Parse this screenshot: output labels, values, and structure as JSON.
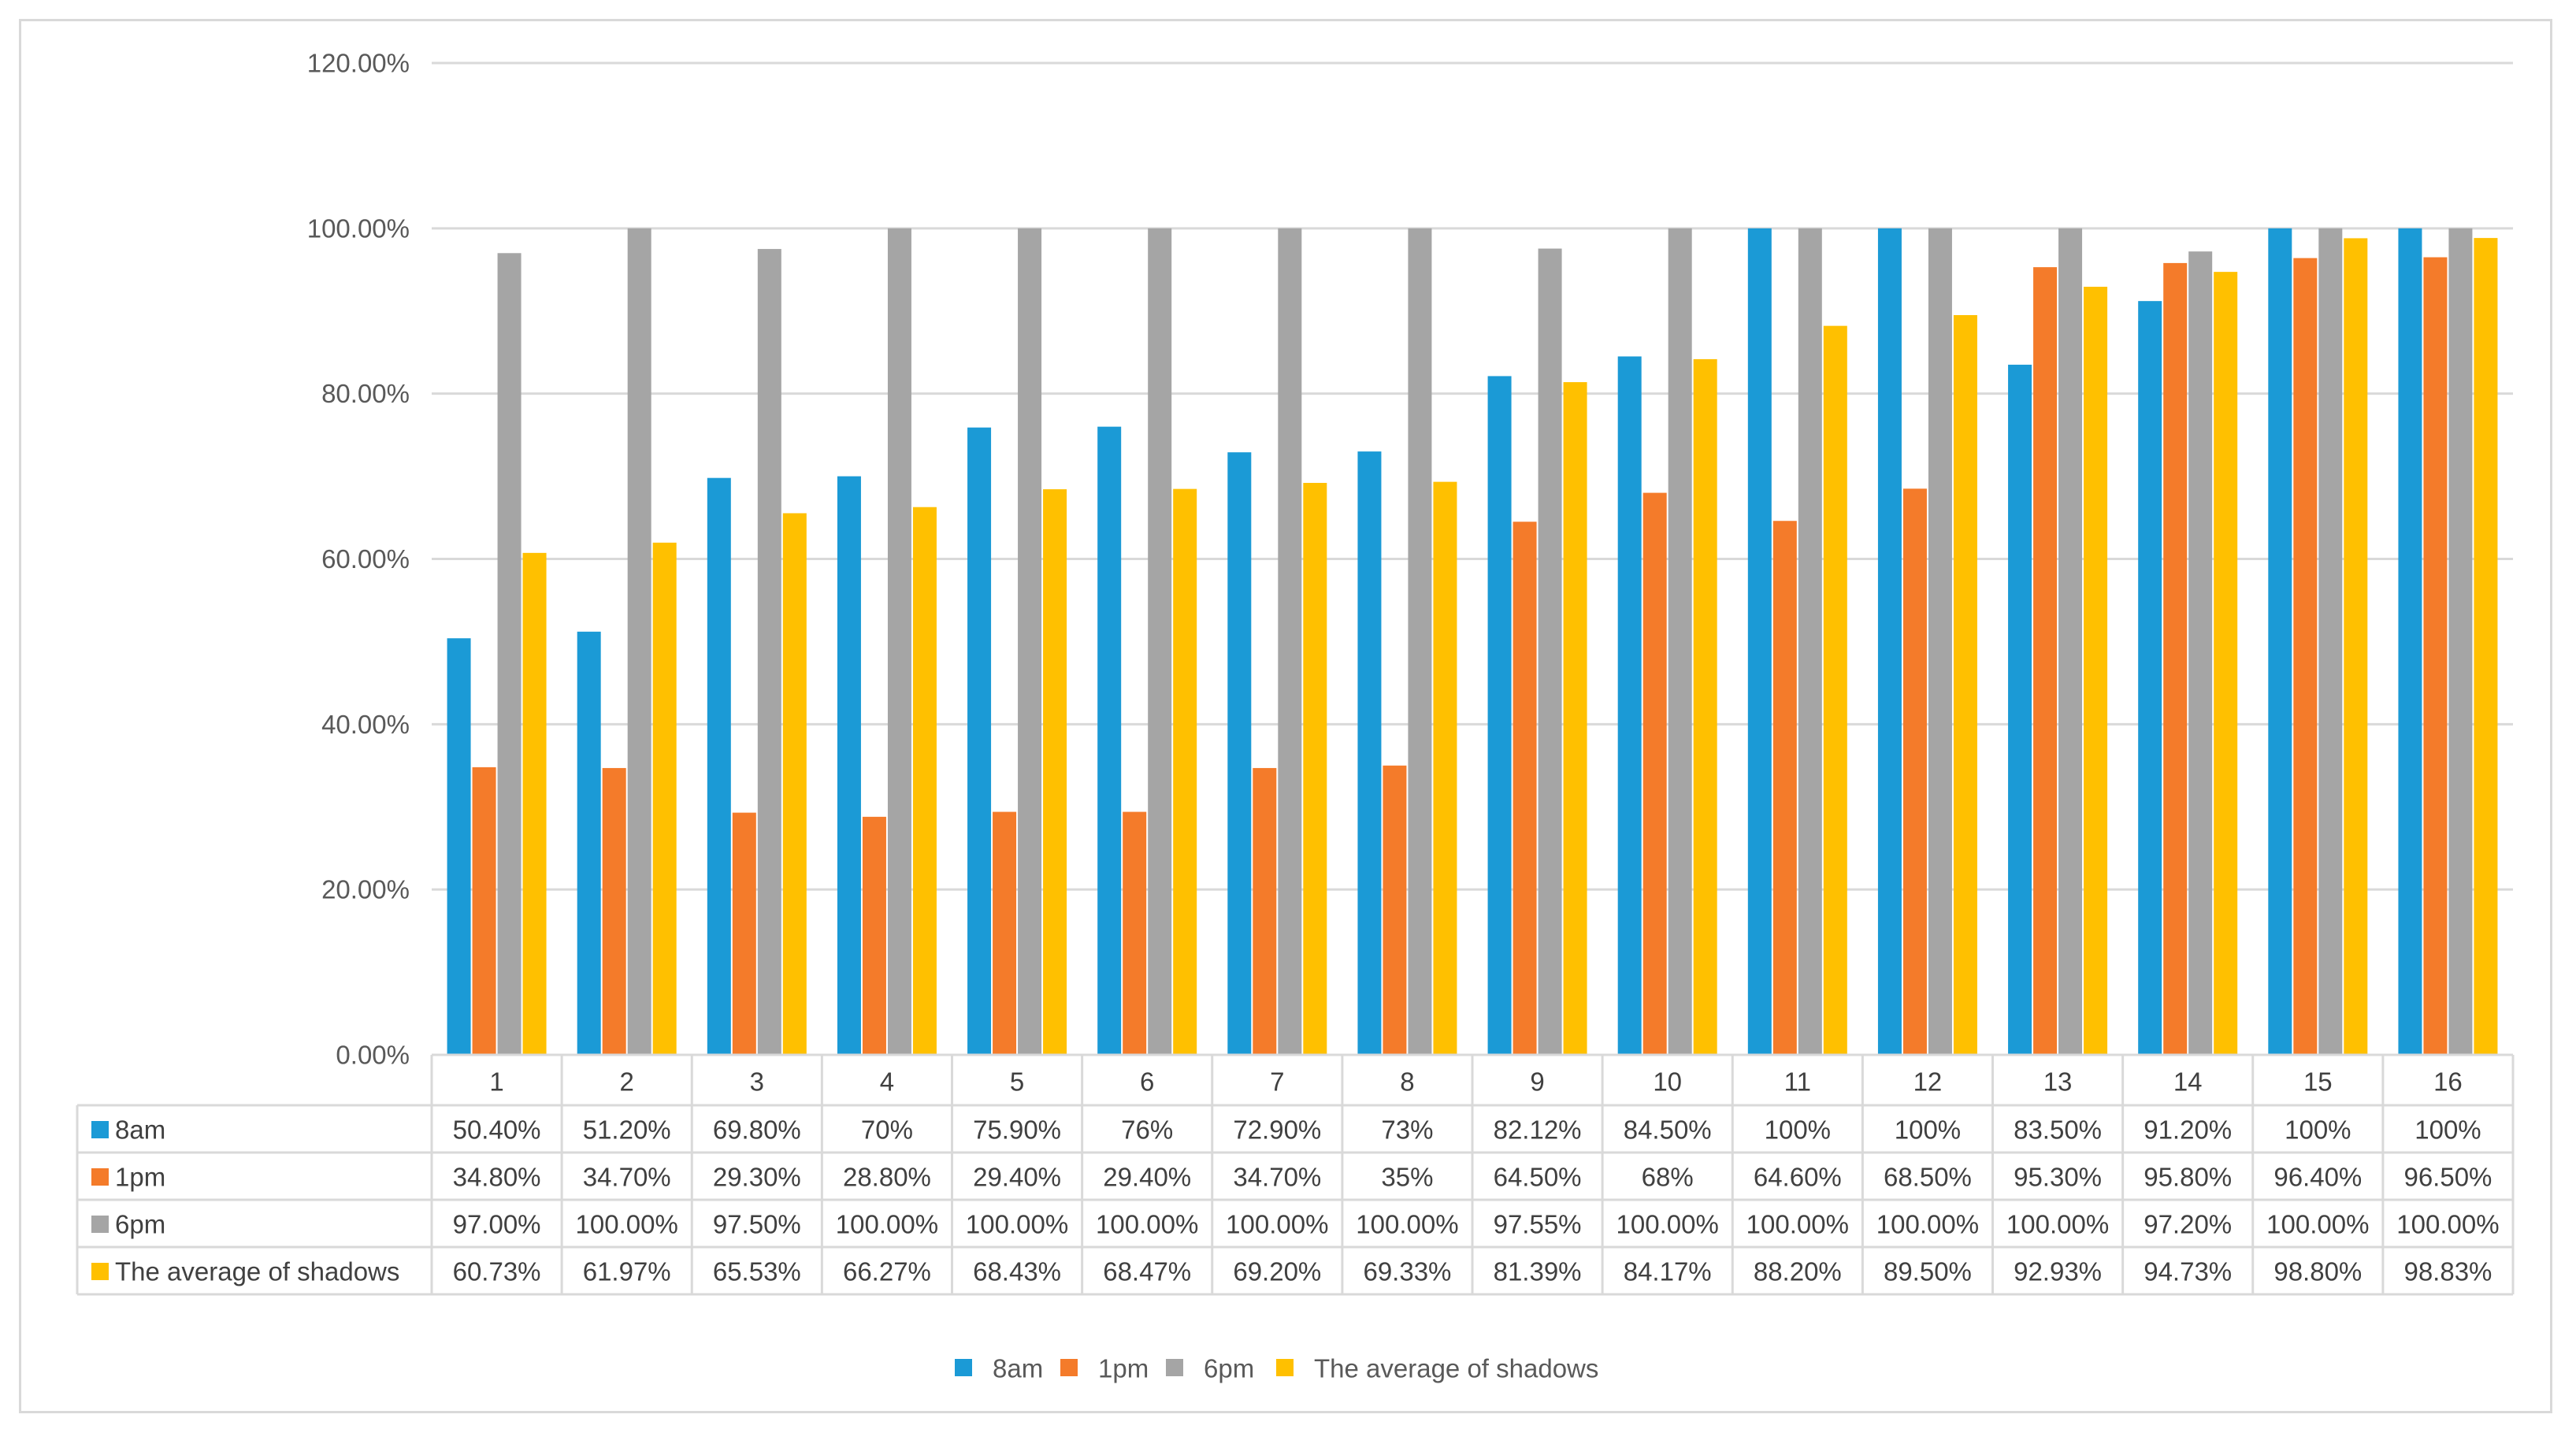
{
  "chart_data": {
    "type": "bar",
    "title": "",
    "xlabel": "",
    "ylabel": "",
    "ylim": [
      0,
      1.2
    ],
    "y_ticks": [
      "0.00%",
      "20.00%",
      "40.00%",
      "60.00%",
      "80.00%",
      "100.00%",
      "120.00%"
    ],
    "y_tick_values": [
      0,
      0.2,
      0.4,
      0.6,
      0.8,
      1.0,
      1.2
    ],
    "grid": true,
    "legend_position": "bottom",
    "categories": [
      "1",
      "2",
      "3",
      "4",
      "5",
      "6",
      "7",
      "8",
      "9",
      "10",
      "11",
      "12",
      "13",
      "14",
      "15",
      "16"
    ],
    "series": [
      {
        "name": "8am",
        "color": "#1b9ad6",
        "values": [
          0.504,
          0.512,
          0.698,
          0.7,
          0.759,
          0.76,
          0.729,
          0.73,
          0.8212,
          0.845,
          1.0,
          1.0,
          0.835,
          0.912,
          1.0,
          1.0
        ],
        "labels": [
          "50.40%",
          "51.20%",
          "69.80%",
          "70%",
          "75.90%",
          "76%",
          "72.90%",
          "73%",
          "82.12%",
          "84.50%",
          "100%",
          "100%",
          "83.50%",
          "91.20%",
          "100%",
          "100%"
        ]
      },
      {
        "name": "1pm",
        "color": "#f47b2a",
        "values": [
          0.348,
          0.347,
          0.293,
          0.288,
          0.294,
          0.294,
          0.347,
          0.35,
          0.645,
          0.68,
          0.646,
          0.685,
          0.953,
          0.958,
          0.964,
          0.965
        ],
        "labels": [
          "34.80%",
          "34.70%",
          "29.30%",
          "28.80%",
          "29.40%",
          "29.40%",
          "34.70%",
          "35%",
          "64.50%",
          "68%",
          "64.60%",
          "68.50%",
          "95.30%",
          "95.80%",
          "96.40%",
          "96.50%"
        ]
      },
      {
        "name": "6pm",
        "color": "#a5a5a5",
        "values": [
          0.97,
          1.0,
          0.975,
          1.0,
          1.0,
          1.0,
          1.0,
          1.0,
          0.9755,
          1.0,
          1.0,
          1.0,
          1.0,
          0.972,
          1.0,
          1.0
        ],
        "labels": [
          "97.00%",
          "100.00%",
          "97.50%",
          "100.00%",
          "100.00%",
          "100.00%",
          "100.00%",
          "100.00%",
          "97.55%",
          "100.00%",
          "100.00%",
          "100.00%",
          "100.00%",
          "97.20%",
          "100.00%",
          "100.00%"
        ]
      },
      {
        "name": "The average of shadows",
        "color": "#ffc000",
        "values": [
          0.6073,
          0.6197,
          0.6553,
          0.6627,
          0.6843,
          0.6847,
          0.692,
          0.6933,
          0.8139,
          0.8417,
          0.882,
          0.895,
          0.9293,
          0.9473,
          0.988,
          0.9883
        ],
        "labels": [
          "60.73%",
          "61.97%",
          "65.53%",
          "66.27%",
          "68.43%",
          "68.47%",
          "69.20%",
          "69.33%",
          "81.39%",
          "84.17%",
          "88.20%",
          "89.50%",
          "92.93%",
          "94.73%",
          "98.80%",
          "98.83%"
        ]
      }
    ]
  }
}
